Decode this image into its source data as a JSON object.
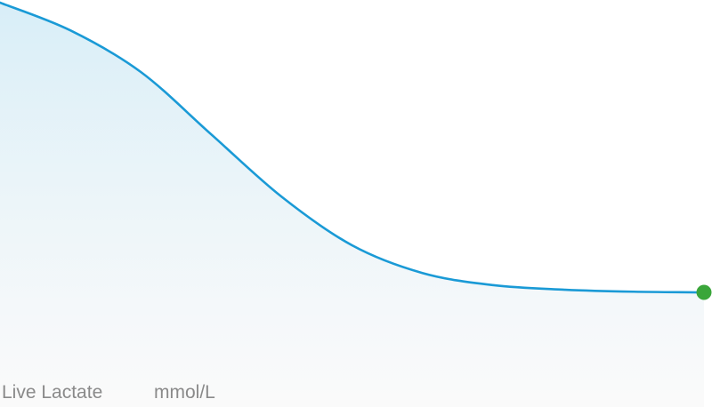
{
  "metric": {
    "label": "Live Lactate",
    "unit": "mmol/L"
  },
  "colors": {
    "line": "#1a9ad6",
    "fill_top": "#d8eef8",
    "fill_bottom": "#f7f7f7",
    "end_marker": "#3aa63a",
    "label_text": "#8a8a8a"
  },
  "chart_data": {
    "type": "area",
    "title": "",
    "xlabel": "",
    "ylabel": "",
    "grid": false,
    "legend": "none",
    "xlim": [
      0,
      10
    ],
    "ylim": [
      0,
      10
    ],
    "series": [
      {
        "x": [
          0,
          1,
          2,
          3,
          4,
          5,
          6,
          7,
          8,
          9,
          10
        ],
        "values": [
          10.0,
          9.2,
          8.0,
          6.2,
          4.4,
          3.0,
          2.2,
          1.85,
          1.72,
          1.66,
          1.64
        ],
        "end_marker": true
      }
    ]
  }
}
